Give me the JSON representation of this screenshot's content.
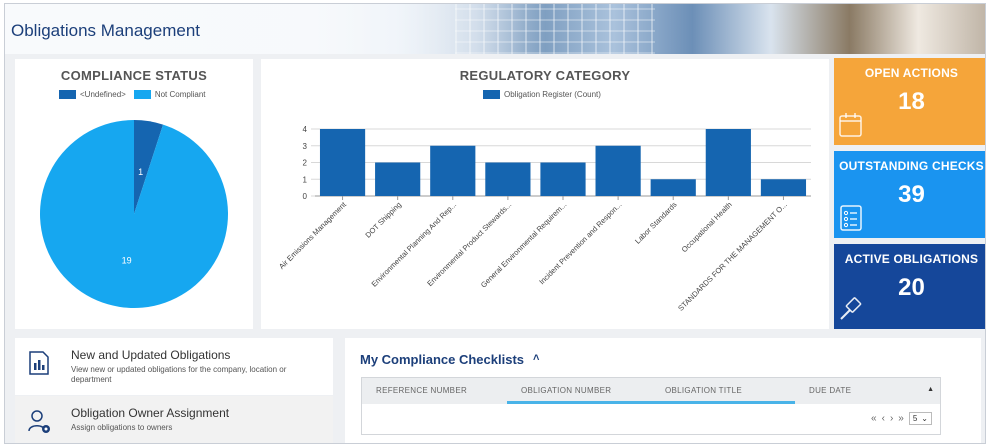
{
  "header": {
    "title": "Obligations Management"
  },
  "compliance_status": {
    "title": "COMPLIANCE STATUS",
    "legend": [
      {
        "label": "<Undefined>",
        "color": "#1565b0"
      },
      {
        "label": "Not Compliant",
        "color": "#16a7f0"
      }
    ]
  },
  "regulatory_category": {
    "title": "REGULATORY CATEGORY",
    "legend": [
      {
        "label": "Obligation Register (Count)",
        "color": "#1565b0"
      }
    ]
  },
  "tiles": {
    "open_actions": {
      "title": "OPEN ACTIONS",
      "value": "18",
      "color": "#f5a53a"
    },
    "outstanding_checks": {
      "title": "OUTSTANDING CHECKS",
      "value": "39",
      "color": "#1a94f0"
    },
    "active_obligations": {
      "title": "ACTIVE OBLIGATIONS",
      "value": "20",
      "color": "#15479a"
    }
  },
  "links": {
    "new_updated": {
      "title": "New and Updated Obligations",
      "desc": "View new or updated obligations for the company, location or department"
    },
    "owner_assignment": {
      "title": "Obligation Owner Assignment",
      "desc": "Assign obligations to owners"
    }
  },
  "checklists": {
    "title": "My Compliance Checklists",
    "collapse_icon": "chevron-up-double-icon",
    "columns": [
      "REFERENCE NUMBER",
      "OBLIGATION NUMBER",
      "OBLIGATION TITLE",
      "DUE DATE"
    ],
    "pager": {
      "page_size": "5"
    }
  },
  "chart_data": [
    {
      "type": "pie",
      "title": "COMPLIANCE STATUS",
      "slices": [
        {
          "label": "<Undefined>",
          "value": 1,
          "color": "#1565b0"
        },
        {
          "label": "Not Compliant",
          "value": 19,
          "color": "#16a7f0"
        }
      ],
      "legend": "top"
    },
    {
      "type": "bar",
      "title": "REGULATORY CATEGORY",
      "categories": [
        "Air Emissions Management",
        "DOT Shipping",
        "Environmental Planning And Rep...",
        "Environmental Product Stewards...",
        "General Environmental Requirem...",
        "Incident Prevention and Respon...",
        "Labor Standards",
        "Occupational Health",
        "STANDARDS FOR THE MANAGEMENT O..."
      ],
      "series": [
        {
          "name": "Obligation Register (Count)",
          "values": [
            4,
            2,
            3,
            2,
            2,
            3,
            1,
            4,
            1
          ],
          "color": "#1565b0"
        }
      ],
      "ylim": [
        0,
        4
      ],
      "yticks": [
        0,
        1,
        2,
        3,
        4
      ],
      "grid": true,
      "legend": "top"
    }
  ]
}
